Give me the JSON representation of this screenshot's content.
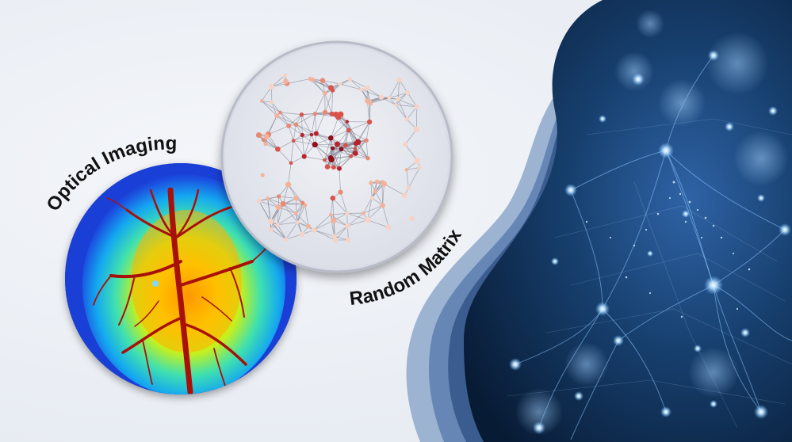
{
  "labels": {
    "optical_imaging": "Optical Imaging",
    "random_matrix": "Random Matrix"
  },
  "colors": {
    "background": "#eef1f6",
    "wave_dark": "#3e5f8f",
    "wave_mid": "#5d7fae",
    "wave_light": "#8ea8cc",
    "network_bg": "#0d2748",
    "node_glow": "#bfe6ff",
    "heatmap_blue": "#1e3fd8",
    "vessel_red": "#b3120c",
    "label_text": "#111111"
  },
  "icons": {
    "left_circle": "optical-imaging-heatmap-icon",
    "middle_circle": "random-matrix-graph-icon",
    "right_panel": "neural-network-icon"
  }
}
